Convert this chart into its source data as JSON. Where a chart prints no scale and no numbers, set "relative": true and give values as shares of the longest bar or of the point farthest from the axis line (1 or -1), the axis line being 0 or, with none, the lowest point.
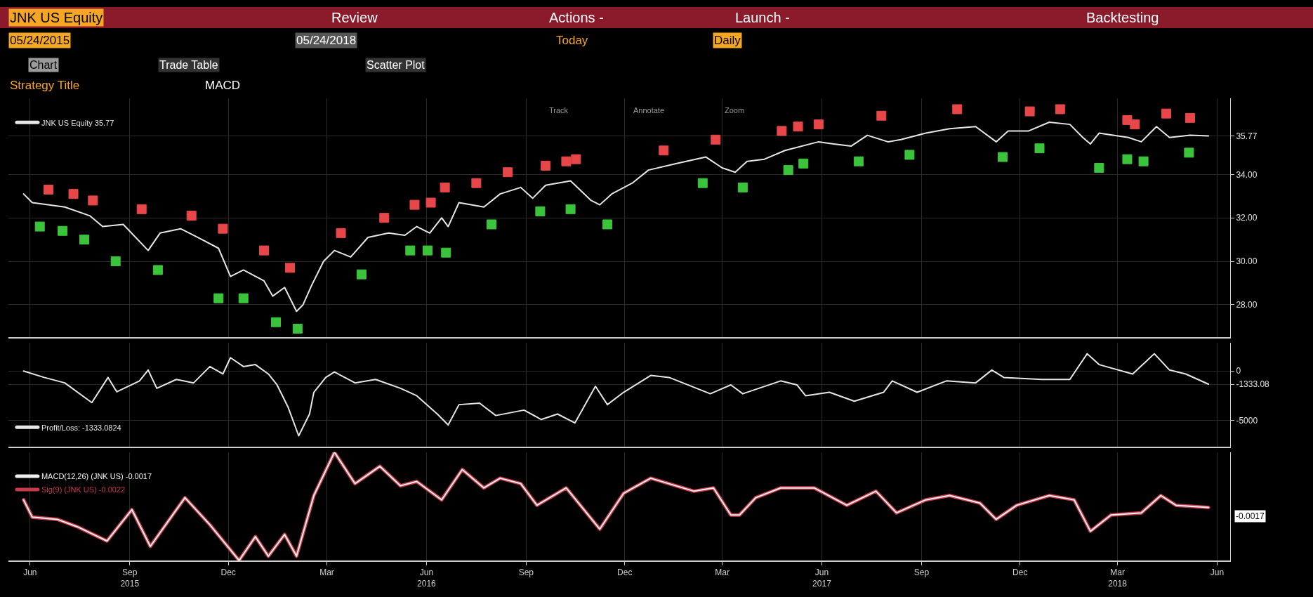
{
  "chart_data": [
    {
      "type": "line",
      "annotations": [
        "JNK US Equity",
        "Review",
        "Actions -",
        "Launch -",
        "Backtesting",
        "05/24/2015",
        "05/24/2018",
        "Today",
        "Daily",
        "Chart",
        "Trade Table",
        "Scatter Plot",
        "Strategy Title",
        "MACD",
        "Track",
        "Annotate",
        "Zoom"
      ],
      "series": [
        {
          "name": "JNK US Equity 35.77",
          "color": "#e6e6e6",
          "x": [
            "2015-05-26",
            "2015-06-03",
            "2015-07-03",
            "2015-07-26",
            "2015-08-07",
            "2015-08-26",
            "2015-09-18",
            "2015-09-29",
            "2015-10-18",
            "2015-11-03",
            "2015-11-22",
            "2015-12-03",
            "2015-12-15",
            "2016-01-03",
            "2016-01-11",
            "2016-01-22",
            "2016-02-02",
            "2016-02-08",
            "2016-02-16",
            "2016-02-27",
            "2016-03-08",
            "2016-03-23",
            "2016-04-08",
            "2016-04-27",
            "2016-05-12",
            "2016-05-23",
            "2016-06-04",
            "2016-06-15",
            "2016-06-21",
            "2016-07-01",
            "2016-07-24",
            "2016-08-08",
            "2016-08-27",
            "2016-09-07",
            "2016-09-19",
            "2016-10-12",
            "2016-10-31",
            "2016-11-08",
            "2016-11-19",
            "2016-12-08",
            "2016-12-23",
            "2017-01-18",
            "2017-02-14",
            "2017-03-01",
            "2017-03-13",
            "2017-03-24",
            "2017-04-09",
            "2017-04-28",
            "2017-05-29",
            "2017-06-12",
            "2017-06-28",
            "2017-07-13",
            "2017-08-01",
            "2017-08-13",
            "2017-09-05",
            "2017-09-27",
            "2017-10-21",
            "2017-11-09",
            "2017-11-20",
            "2017-12-09",
            "2017-12-28",
            "2018-01-16",
            "2018-01-28",
            "2018-02-04",
            "2018-02-12",
            "2018-03-11",
            "2018-03-23",
            "2018-04-06",
            "2018-04-18",
            "2018-05-07",
            "2018-05-24"
          ],
          "values": [
            33.1,
            32.7,
            32.5,
            32.1,
            31.6,
            31.7,
            30.5,
            31.3,
            31.5,
            31.1,
            30.6,
            29.3,
            29.6,
            29.1,
            28.4,
            28.8,
            27.7,
            28.0,
            28.9,
            30.0,
            30.5,
            30.2,
            31.1,
            31.3,
            31.2,
            31.6,
            31.3,
            32.0,
            31.6,
            32.7,
            32.5,
            33.1,
            33.4,
            32.9,
            33.5,
            33.7,
            32.8,
            32.6,
            33.1,
            33.6,
            34.2,
            34.5,
            34.8,
            34.3,
            34.1,
            34.6,
            34.7,
            35.1,
            35.5,
            35.4,
            35.3,
            35.8,
            35.5,
            35.6,
            35.9,
            36.1,
            36.2,
            35.5,
            36.0,
            36.0,
            36.4,
            36.3,
            35.7,
            35.4,
            35.9,
            35.7,
            35.5,
            36.2,
            35.7,
            35.8,
            35.77
          ]
        },
        {
          "type": "scatter",
          "color": "#e8474a",
          "marker": "square",
          "x": [
            "2015-06-18",
            "2015-07-11",
            "2015-07-29",
            "2015-09-12",
            "2015-10-28",
            "2015-11-26",
            "2016-01-03",
            "2016-01-27",
            "2016-03-14",
            "2016-04-23",
            "2016-05-21",
            "2016-06-05",
            "2016-06-18",
            "2016-07-17",
            "2016-08-15",
            "2016-09-19",
            "2016-10-08",
            "2016-10-17",
            "2017-01-06",
            "2017-02-23",
            "2017-04-25",
            "2017-05-10",
            "2017-05-29",
            "2017-07-26",
            "2017-10-04",
            "2017-12-10",
            "2018-01-07",
            "2018-03-10",
            "2018-03-17",
            "2018-04-15",
            "2018-05-07"
          ],
          "values": [
            33.3,
            33.1,
            32.8,
            32.4,
            32.1,
            31.5,
            30.5,
            29.7,
            31.3,
            32.0,
            32.6,
            32.7,
            33.4,
            33.6,
            34.1,
            34.4,
            34.6,
            34.7,
            35.1,
            35.6,
            36.0,
            36.2,
            36.3,
            36.7,
            37.0,
            36.9,
            37.0,
            36.5,
            36.3,
            36.8,
            36.6
          ]
        },
        {
          "type": "scatter",
          "color": "#3bc43b",
          "marker": "square",
          "x": [
            "2015-06-10",
            "2015-07-01",
            "2015-07-21",
            "2015-08-19",
            "2015-09-27",
            "2015-11-22",
            "2015-12-15",
            "2016-01-14",
            "2016-02-03",
            "2016-04-02",
            "2016-05-17",
            "2016-06-02",
            "2016-06-19",
            "2016-07-31",
            "2016-09-14",
            "2016-10-12",
            "2016-11-15",
            "2017-02-11",
            "2017-03-20",
            "2017-05-01",
            "2017-05-15",
            "2017-07-05",
            "2017-08-21",
            "2017-11-15",
            "2017-12-19",
            "2018-02-12",
            "2018-03-10",
            "2018-03-25",
            "2018-05-06"
          ],
          "values": [
            31.6,
            31.4,
            31.0,
            30.0,
            29.6,
            28.3,
            28.3,
            27.2,
            26.9,
            29.4,
            30.5,
            30.5,
            30.4,
            31.7,
            32.3,
            32.4,
            31.7,
            33.6,
            33.4,
            34.2,
            34.5,
            34.6,
            34.9,
            34.8,
            35.2,
            34.3,
            34.7,
            34.6,
            35.0
          ]
        }
      ],
      "xlim": [
        "2015-05-12",
        "2018-06-13"
      ],
      "xticks": [
        {
          "value": "2015-06-01",
          "label": null
        },
        {
          "value": "2015-09-01",
          "label": null
        },
        {
          "value": "2015-12-01",
          "label": null
        },
        {
          "value": "2016-03-01",
          "label": null
        },
        {
          "value": "2016-06-01",
          "label": null
        },
        {
          "value": "2016-09-01",
          "label": null
        },
        {
          "value": "2016-12-01",
          "label": null
        },
        {
          "value": "2017-03-01",
          "label": null
        },
        {
          "value": "2017-06-01",
          "label": null
        },
        {
          "value": "2017-09-01",
          "label": null
        },
        {
          "value": "2017-12-01",
          "label": null
        },
        {
          "value": "2018-03-01",
          "label": null
        },
        {
          "value": "2018-06-01",
          "label": null
        }
      ],
      "ylim": [
        26.5,
        37.5
      ],
      "yticks": [
        {
          "value": 28,
          "label": "28.00"
        },
        {
          "value": 30,
          "label": "30.00"
        },
        {
          "value": 32,
          "label": "32.00"
        },
        {
          "value": 34,
          "label": "34.00"
        },
        {
          "value": 35.77,
          "label": "35.77"
        }
      ],
      "grid": true,
      "legend": "top left",
      "tick_labels": "y"
    },
    {
      "type": "line",
      "series": [
        {
          "name": "Profit/Loss: -1333.0824",
          "color": "#e6e6e6",
          "x": [
            "2015-05-26",
            "2015-06-14",
            "2015-07-03",
            "2015-07-28",
            "2015-08-12",
            "2015-08-20",
            "2015-09-10",
            "2015-09-18",
            "2015-09-26",
            "2015-10-14",
            "2015-10-30",
            "2015-11-14",
            "2015-11-26",
            "2015-12-03",
            "2015-12-15",
            "2015-12-26",
            "2016-01-07",
            "2016-01-15",
            "2016-01-25",
            "2016-02-04",
            "2016-02-14",
            "2016-02-18",
            "2016-02-29",
            "2016-03-08",
            "2016-03-27",
            "2016-04-15",
            "2016-05-08",
            "2016-05-23",
            "2016-06-11",
            "2016-06-21",
            "2016-07-01",
            "2016-07-20",
            "2016-08-04",
            "2016-08-30",
            "2016-09-15",
            "2016-09-30",
            "2016-10-16",
            "2016-11-04",
            "2016-11-15",
            "2016-11-30",
            "2016-12-25",
            "2017-01-11",
            "2017-02-18",
            "2017-03-09",
            "2017-03-20",
            "2017-04-24",
            "2017-05-09",
            "2017-05-17",
            "2017-06-08",
            "2017-07-01",
            "2017-07-28",
            "2017-08-05",
            "2017-08-28",
            "2017-09-24",
            "2017-10-21",
            "2017-11-05",
            "2017-11-16",
            "2017-12-21",
            "2018-01-16",
            "2018-02-01",
            "2018-02-12",
            "2018-03-15",
            "2018-04-04",
            "2018-04-18",
            "2018-05-03",
            "2018-05-24"
          ],
          "values": [
            0,
            -650,
            -1200,
            -3200,
            -650,
            -2100,
            -1000,
            100,
            -1750,
            -850,
            -1200,
            450,
            -300,
            1350,
            450,
            650,
            -300,
            -1400,
            -3600,
            -6550,
            -4350,
            -2150,
            -650,
            -100,
            -1200,
            -850,
            -1750,
            -2500,
            -4350,
            -5450,
            -3400,
            -3250,
            -4500,
            -3950,
            -4900,
            -4350,
            -5250,
            -1550,
            -3400,
            -2150,
            -450,
            -650,
            -2300,
            -1400,
            -2300,
            -1000,
            -1400,
            -2500,
            -2150,
            -3050,
            -2150,
            -1000,
            -2150,
            -1000,
            -1200,
            100,
            -650,
            -850,
            -850,
            1750,
            650,
            -300,
            1750,
            100,
            -300,
            -1333.08
          ]
        }
      ],
      "xlim": [
        "2015-05-12",
        "2018-06-13"
      ],
      "xticks": [
        {
          "value": "2015-06-01",
          "label": null
        },
        {
          "value": "2015-09-01",
          "label": null
        },
        {
          "value": "2015-12-01",
          "label": null
        },
        {
          "value": "2016-03-01",
          "label": null
        },
        {
          "value": "2016-06-01",
          "label": null
        },
        {
          "value": "2016-09-01",
          "label": null
        },
        {
          "value": "2016-12-01",
          "label": null
        },
        {
          "value": "2017-03-01",
          "label": null
        },
        {
          "value": "2017-06-01",
          "label": null
        },
        {
          "value": "2017-09-01",
          "label": null
        },
        {
          "value": "2017-12-01",
          "label": null
        },
        {
          "value": "2018-03-01",
          "label": null
        },
        {
          "value": "2018-06-01",
          "label": null
        }
      ],
      "ylim": [
        -7650,
        2840
      ],
      "yticks": [
        {
          "value": -5000,
          "label": "-5000"
        },
        {
          "value": -1333.08,
          "label": "-1333.08"
        },
        0
      ],
      "grid": true,
      "legend": "bottom left",
      "tick_labels": "y"
    },
    {
      "type": "line",
      "relative": true,
      "annotations": [
        "-0.0017"
      ],
      "series": [
        {
          "name": "MACD(12,26) (JNK US) -0.0017",
          "color": "#f0f0f0",
          "x": [
            "2015-05-26",
            "2015-06-03",
            "2015-06-26",
            "2015-07-15",
            "2015-08-11",
            "2015-09-03",
            "2015-09-20",
            "2015-10-22",
            "2015-11-14",
            "2015-12-11",
            "2015-12-26",
            "2016-01-07",
            "2016-01-22",
            "2016-02-02",
            "2016-02-18",
            "2016-03-08",
            "2016-03-27",
            "2016-04-19",
            "2016-05-08",
            "2016-05-23",
            "2016-06-15",
            "2016-07-04",
            "2016-07-24",
            "2016-08-08",
            "2016-08-27",
            "2016-09-11",
            "2016-10-08",
            "2016-11-08",
            "2016-11-30",
            "2016-12-25",
            "2017-02-03",
            "2017-02-21",
            "2017-03-09",
            "2017-03-17",
            "2017-04-01",
            "2017-04-24",
            "2017-05-25",
            "2017-06-24",
            "2017-07-21",
            "2017-08-09",
            "2017-09-05",
            "2017-09-27",
            "2017-10-25",
            "2017-11-09",
            "2017-11-28",
            "2017-12-28",
            "2018-01-20",
            "2018-02-04",
            "2018-02-23",
            "2018-03-23",
            "2018-04-10",
            "2018-04-24",
            "2018-05-24"
          ],
          "values": [
            0.56,
            0.4,
            0.38,
            0.31,
            0.18,
            0.47,
            0.13,
            0.58,
            0.33,
            0.0,
            0.22,
            0.04,
            0.24,
            0.04,
            0.6,
            1.0,
            0.71,
            0.87,
            0.69,
            0.73,
            0.56,
            0.84,
            0.67,
            0.76,
            0.71,
            0.51,
            0.67,
            0.29,
            0.62,
            0.76,
            0.64,
            0.67,
            0.42,
            0.42,
            0.58,
            0.67,
            0.67,
            0.51,
            0.64,
            0.44,
            0.56,
            0.6,
            0.53,
            0.38,
            0.51,
            0.6,
            0.56,
            0.27,
            0.42,
            0.44,
            0.6,
            0.51,
            0.49
          ]
        },
        {
          "name": "Sig(9) (JNK US) -0.0022",
          "color": "#c8394a",
          "x": [
            "2015-05-26",
            "2015-06-03",
            "2015-06-26",
            "2015-07-15",
            "2015-08-11",
            "2015-09-03",
            "2015-09-20",
            "2015-10-22",
            "2015-11-14",
            "2015-12-11",
            "2015-12-26",
            "2016-01-07",
            "2016-01-22",
            "2016-02-02",
            "2016-02-18",
            "2016-03-08",
            "2016-03-27",
            "2016-04-19",
            "2016-05-08",
            "2016-05-23",
            "2016-06-15",
            "2016-07-04",
            "2016-07-24",
            "2016-08-08",
            "2016-08-27",
            "2016-09-11",
            "2016-10-08",
            "2016-11-08",
            "2016-11-30",
            "2016-12-25",
            "2017-02-03",
            "2017-02-21",
            "2017-03-09",
            "2017-03-17",
            "2017-04-01",
            "2017-04-24",
            "2017-05-25",
            "2017-06-24",
            "2017-07-21",
            "2017-08-09",
            "2017-09-05",
            "2017-09-27",
            "2017-10-25",
            "2017-11-09",
            "2017-11-28",
            "2017-12-28",
            "2018-01-20",
            "2018-02-04",
            "2018-02-23",
            "2018-03-23",
            "2018-04-10",
            "2018-04-24",
            "2018-05-24"
          ],
          "values": [
            0.56,
            0.4,
            0.38,
            0.31,
            0.18,
            0.47,
            0.13,
            0.58,
            0.33,
            0.0,
            0.22,
            0.04,
            0.24,
            0.04,
            0.6,
            1.0,
            0.71,
            0.87,
            0.69,
            0.73,
            0.56,
            0.84,
            0.67,
            0.76,
            0.71,
            0.51,
            0.67,
            0.29,
            0.62,
            0.76,
            0.64,
            0.67,
            0.42,
            0.42,
            0.58,
            0.67,
            0.67,
            0.51,
            0.64,
            0.44,
            0.56,
            0.6,
            0.53,
            0.38,
            0.51,
            0.6,
            0.56,
            0.27,
            0.42,
            0.44,
            0.6,
            0.51,
            0.49
          ]
        }
      ],
      "xlim": [
        "2015-05-12",
        "2018-06-13"
      ],
      "xticks": [
        {
          "value": "2015-06-01",
          "label": "Jun"
        },
        {
          "value": "2015-09-01",
          "label": "Sep\n2015"
        },
        {
          "value": "2015-12-01",
          "label": "Dec"
        },
        {
          "value": "2016-03-01",
          "label": "Mar"
        },
        {
          "value": "2016-06-01",
          "label": "Jun\n2016"
        },
        {
          "value": "2016-09-01",
          "label": "Sep"
        },
        {
          "value": "2016-12-01",
          "label": "Dec"
        },
        {
          "value": "2017-03-01",
          "label": "Mar"
        },
        {
          "value": "2017-06-01",
          "label": "Jun\n2017"
        },
        {
          "value": "2017-09-01",
          "label": "Sep"
        },
        {
          "value": "2017-12-01",
          "label": "Dec"
        },
        {
          "value": "2018-03-01",
          "label": "Mar\n2018"
        },
        {
          "value": "2018-06-01",
          "label": "Jun"
        }
      ],
      "grid": true,
      "legend": "top left",
      "tick_labels": "x"
    }
  ]
}
